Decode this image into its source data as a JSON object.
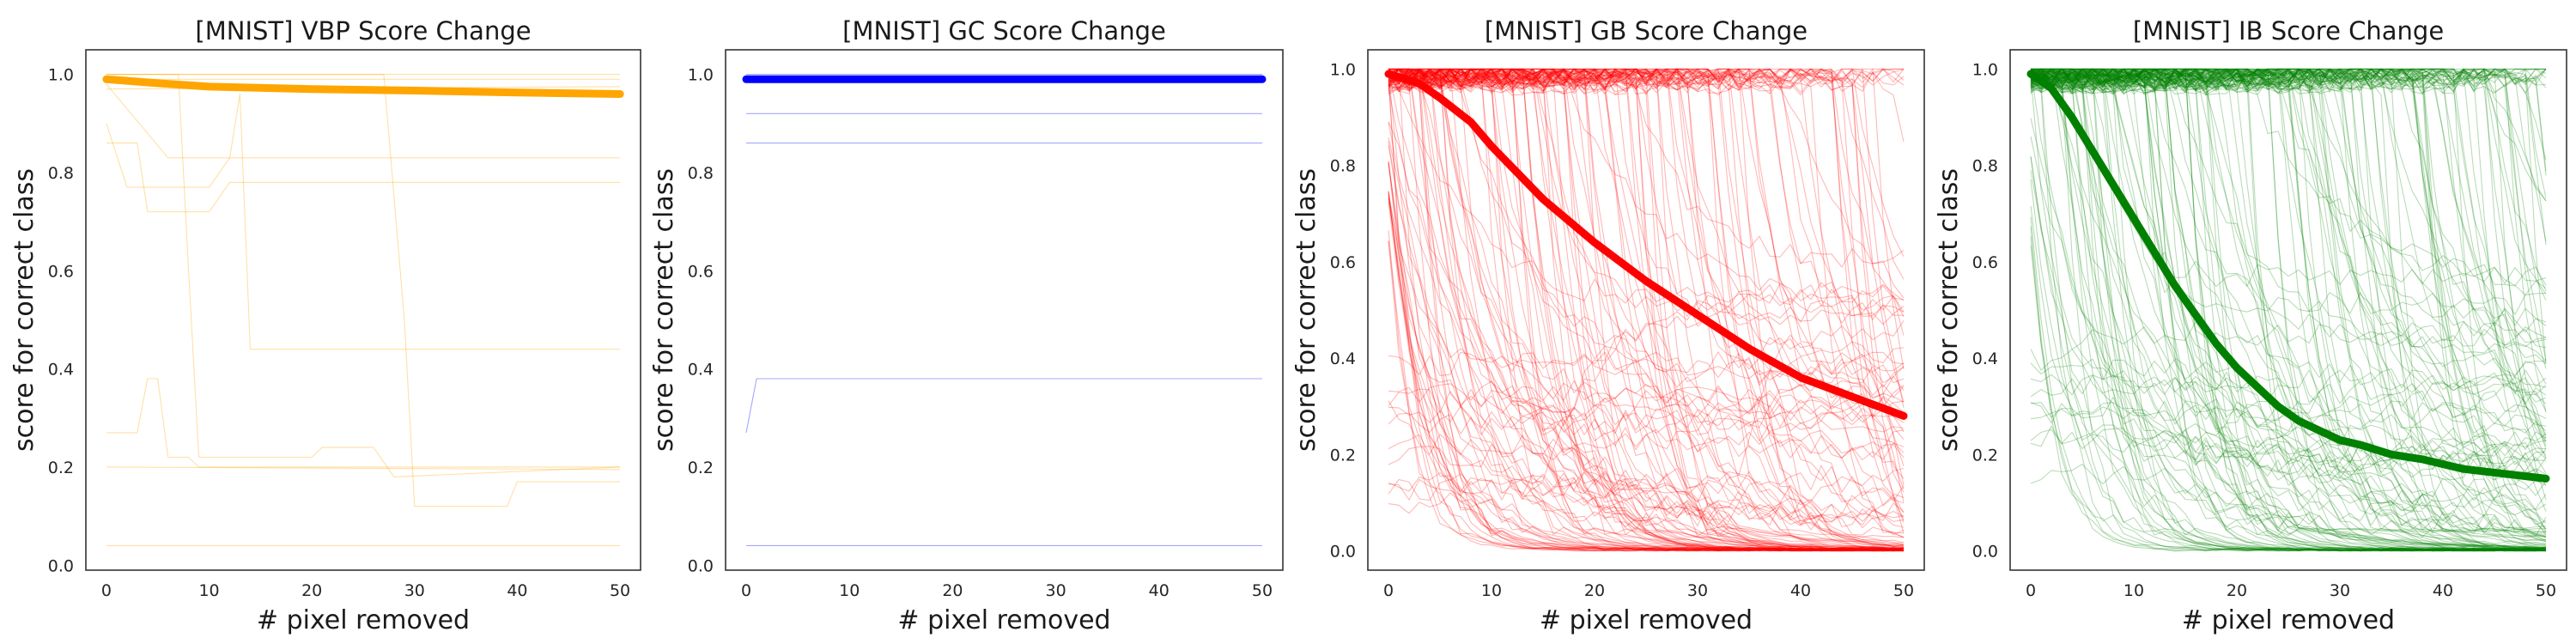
{
  "chart_data": [
    {
      "type": "line",
      "title": "[MNIST] VBP Score Change",
      "xlabel": "# pixel removed",
      "ylabel": "score for correct class",
      "xlim": [
        -2,
        52
      ],
      "ylim": [
        -0.01,
        1.05
      ],
      "xticks": [
        "0",
        "10",
        "20",
        "30",
        "40",
        "50"
      ],
      "yticks": [
        "0.0",
        "0.2",
        "0.4",
        "0.6",
        "0.8",
        "1.0"
      ],
      "color": "#ffa500",
      "grid": false,
      "series": [
        {
          "role": "mean",
          "points": [
            [
              0,
              0.99
            ],
            [
              5,
              0.982
            ],
            [
              10,
              0.975
            ],
            [
              20,
              0.97
            ],
            [
              30,
              0.967
            ],
            [
              40,
              0.963
            ],
            [
              50,
              0.96
            ]
          ]
        },
        {
          "role": "sample",
          "points": [
            [
              0,
              1.0
            ],
            [
              50,
              1.0
            ]
          ]
        },
        {
          "role": "sample",
          "points": [
            [
              0,
              0.99
            ],
            [
              50,
              0.99
            ]
          ]
        },
        {
          "role": "sample",
          "points": [
            [
              0,
              0.97
            ],
            [
              50,
              0.975
            ]
          ]
        },
        {
          "role": "sample",
          "points": [
            [
              0,
              0.86
            ],
            [
              3,
              0.86
            ],
            [
              4,
              0.72
            ],
            [
              10,
              0.72
            ],
            [
              12,
              0.78
            ],
            [
              50,
              0.78
            ]
          ]
        },
        {
          "role": "sample",
          "points": [
            [
              0,
              0.98
            ],
            [
              6,
              0.83
            ],
            [
              50,
              0.83
            ]
          ]
        },
        {
          "role": "sample",
          "points": [
            [
              0,
              0.9
            ],
            [
              2,
              0.77
            ],
            [
              10,
              0.77
            ],
            [
              12,
              0.83
            ],
            [
              13,
              0.96
            ],
            [
              14,
              0.44
            ],
            [
              50,
              0.44
            ]
          ]
        },
        {
          "role": "sample",
          "points": [
            [
              0,
              1.0
            ],
            [
              27,
              1.0
            ],
            [
              29,
              0.5
            ],
            [
              30,
              0.12
            ],
            [
              39,
              0.12
            ],
            [
              40,
              0.17
            ],
            [
              50,
              0.17
            ]
          ]
        },
        {
          "role": "sample",
          "points": [
            [
              0,
              1.0
            ],
            [
              7,
              1.0
            ],
            [
              8,
              0.6
            ],
            [
              9,
              0.22
            ],
            [
              20,
              0.22
            ],
            [
              21,
              0.24
            ],
            [
              26,
              0.24
            ],
            [
              28,
              0.18
            ],
            [
              50,
              0.2
            ]
          ]
        },
        {
          "role": "sample",
          "points": [
            [
              0,
              0.27
            ],
            [
              3,
              0.27
            ],
            [
              4,
              0.38
            ],
            [
              5,
              0.38
            ],
            [
              6,
              0.22
            ],
            [
              8,
              0.22
            ],
            [
              9,
              0.2
            ],
            [
              50,
              0.2
            ]
          ]
        },
        {
          "role": "sample",
          "points": [
            [
              0,
              0.2
            ],
            [
              50,
              0.195
            ]
          ]
        },
        {
          "role": "sample",
          "points": [
            [
              0,
              0.04
            ],
            [
              50,
              0.04
            ]
          ]
        }
      ]
    },
    {
      "type": "line",
      "title": "[MNIST] GC Score Change",
      "xlabel": "# pixel removed",
      "ylabel": "score for correct class",
      "xlim": [
        -2,
        52
      ],
      "ylim": [
        -0.01,
        1.05
      ],
      "xticks": [
        "0",
        "10",
        "20",
        "30",
        "40",
        "50"
      ],
      "yticks": [
        "0.0",
        "0.2",
        "0.4",
        "0.6",
        "0.8",
        "1.0"
      ],
      "color": "#0000ff",
      "grid": false,
      "series": [
        {
          "role": "mean",
          "points": [
            [
              0,
              0.99
            ],
            [
              50,
              0.99
            ]
          ]
        },
        {
          "role": "sample",
          "points": [
            [
              0,
              1.0
            ],
            [
              50,
              1.0
            ]
          ]
        },
        {
          "role": "sample",
          "points": [
            [
              0,
              0.92
            ],
            [
              50,
              0.92
            ]
          ]
        },
        {
          "role": "sample",
          "points": [
            [
              0,
              0.86
            ],
            [
              50,
              0.86
            ]
          ]
        },
        {
          "role": "sample",
          "points": [
            [
              0,
              0.27
            ],
            [
              1,
              0.38
            ],
            [
              50,
              0.38
            ]
          ]
        },
        {
          "role": "sample",
          "points": [
            [
              0,
              0.04
            ],
            [
              50,
              0.04
            ]
          ]
        }
      ]
    },
    {
      "type": "line",
      "title": "[MNIST] GB Score Change",
      "xlabel": "# pixel removed",
      "ylabel": "score for correct class",
      "xlim": [
        -2,
        52
      ],
      "ylim": [
        -0.04,
        1.04
      ],
      "xticks": [
        "0",
        "10",
        "20",
        "30",
        "40",
        "50"
      ],
      "yticks": [
        "0.0",
        "0.2",
        "0.4",
        "0.6",
        "0.8",
        "1.0"
      ],
      "color": "#ff0000",
      "grid": false,
      "mean": [
        [
          0,
          0.99
        ],
        [
          3,
          0.97
        ],
        [
          5,
          0.94
        ],
        [
          8,
          0.89
        ],
        [
          10,
          0.84
        ],
        [
          15,
          0.73
        ],
        [
          20,
          0.64
        ],
        [
          25,
          0.56
        ],
        [
          30,
          0.49
        ],
        [
          35,
          0.42
        ],
        [
          40,
          0.36
        ],
        [
          45,
          0.32
        ],
        [
          50,
          0.28
        ]
      ],
      "sample_count": 150,
      "sample_seed": 7
    },
    {
      "type": "line",
      "title": "[MNIST] IB Score Change",
      "xlabel": "# pixel removed",
      "ylabel": "score for correct class",
      "xlim": [
        -2,
        52
      ],
      "ylim": [
        -0.04,
        1.04
      ],
      "xticks": [
        "0",
        "10",
        "20",
        "30",
        "40",
        "50"
      ],
      "yticks": [
        "0.0",
        "0.2",
        "0.4",
        "0.6",
        "0.8",
        "1.0"
      ],
      "color": "#008000",
      "grid": false,
      "mean": [
        [
          0,
          0.99
        ],
        [
          2,
          0.96
        ],
        [
          4,
          0.9
        ],
        [
          6,
          0.83
        ],
        [
          8,
          0.76
        ],
        [
          10,
          0.69
        ],
        [
          12,
          0.62
        ],
        [
          14,
          0.55
        ],
        [
          16,
          0.49
        ],
        [
          18,
          0.43
        ],
        [
          20,
          0.38
        ],
        [
          22,
          0.34
        ],
        [
          24,
          0.3
        ],
        [
          26,
          0.27
        ],
        [
          28,
          0.25
        ],
        [
          30,
          0.23
        ],
        [
          32,
          0.22
        ],
        [
          35,
          0.2
        ],
        [
          38,
          0.19
        ],
        [
          42,
          0.17
        ],
        [
          46,
          0.16
        ],
        [
          50,
          0.15
        ]
      ],
      "sample_count": 170,
      "sample_seed": 11
    }
  ]
}
